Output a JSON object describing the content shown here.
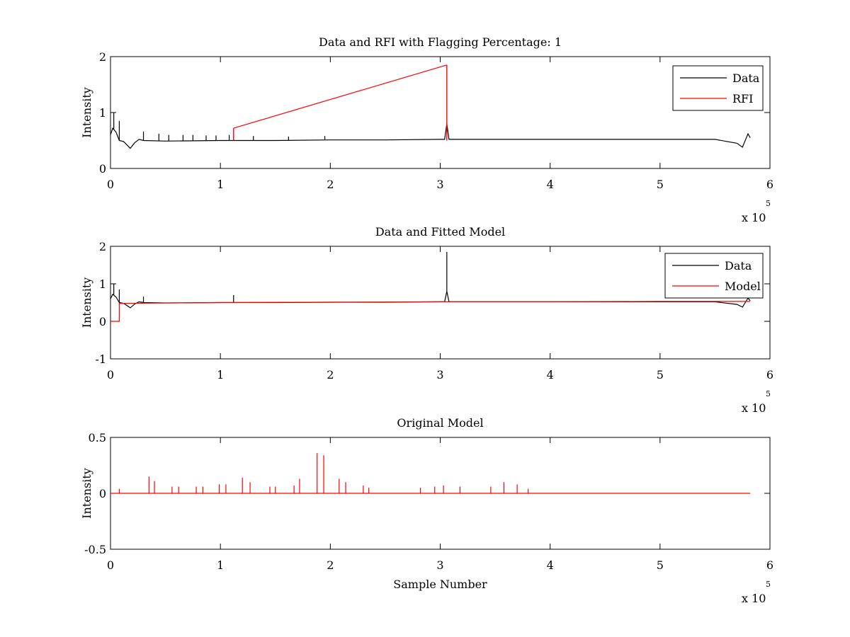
{
  "chart_data": [
    {
      "type": "line",
      "title": "Data and RFI with Flagging Percentage: 1",
      "xlabel": "",
      "ylabel": "Intensity",
      "xlim": [
        0,
        6
      ],
      "ylim": [
        0,
        2
      ],
      "x_ticks": [
        "0",
        "1",
        "2",
        "3",
        "4",
        "5",
        "6"
      ],
      "y_ticks": [
        "0",
        "1",
        "2"
      ],
      "x_multiplier": "x 10",
      "x_exponent": "5",
      "legend": "top-right",
      "series": [
        {
          "name": "Data",
          "color": "#000000",
          "x": [
            0,
            0.02,
            0.05,
            0.08,
            0.12,
            0.15,
            0.18,
            0.22,
            0.26,
            0.3,
            0.5,
            1,
            1.5,
            2,
            2.5,
            3,
            3.04,
            3.06,
            3.08,
            3.5,
            4,
            4.5,
            5,
            5.5,
            5.7,
            5.75,
            5.8,
            5.82
          ],
          "y": [
            0.6,
            0.72,
            0.65,
            0.5,
            0.48,
            0.42,
            0.36,
            0.46,
            0.52,
            0.5,
            0.49,
            0.5,
            0.5,
            0.51,
            0.51,
            0.52,
            0.52,
            0.8,
            0.52,
            0.52,
            0.52,
            0.52,
            0.52,
            0.52,
            0.45,
            0.38,
            0.62,
            0.55
          ],
          "spikes": [
            {
              "x": 0.03,
              "y": 1.0
            },
            {
              "x": 0.08,
              "y": 0.85
            },
            {
              "x": 0.3,
              "y": 0.66
            },
            {
              "x": 0.44,
              "y": 0.62
            },
            {
              "x": 0.53,
              "y": 0.6
            },
            {
              "x": 0.66,
              "y": 0.6
            },
            {
              "x": 0.75,
              "y": 0.6
            },
            {
              "x": 0.87,
              "y": 0.59
            },
            {
              "x": 0.96,
              "y": 0.59
            },
            {
              "x": 1.08,
              "y": 0.6
            },
            {
              "x": 1.3,
              "y": 0.58
            },
            {
              "x": 1.62,
              "y": 0.57
            },
            {
              "x": 1.95,
              "y": 0.58
            },
            {
              "x": 3.06,
              "y": 0.82
            }
          ]
        },
        {
          "name": "RFI",
          "color": "#ff0000",
          "x": [
            1.12,
            3.06
          ],
          "y": [
            0.72,
            1.85
          ]
        }
      ]
    },
    {
      "type": "line",
      "title": "Data and Fitted Model",
      "xlabel": "",
      "ylabel": "Intensity",
      "xlim": [
        0,
        6
      ],
      "ylim": [
        -1,
        2
      ],
      "x_ticks": [
        "0",
        "1",
        "2",
        "3",
        "4",
        "5",
        "6"
      ],
      "y_ticks": [
        "-1",
        "0",
        "1",
        "2"
      ],
      "x_multiplier": "x 10",
      "x_exponent": "5",
      "legend": "top-right",
      "series": [
        {
          "name": "Data",
          "color": "#000000",
          "x": [
            0,
            0.02,
            0.05,
            0.08,
            0.12,
            0.15,
            0.18,
            0.22,
            0.26,
            0.3,
            0.5,
            1,
            1.5,
            2,
            2.5,
            3,
            3.04,
            3.06,
            3.08,
            3.5,
            4,
            4.5,
            5,
            5.5,
            5.7,
            5.75,
            5.8,
            5.82
          ],
          "y": [
            0.6,
            0.72,
            0.65,
            0.5,
            0.48,
            0.42,
            0.36,
            0.46,
            0.52,
            0.5,
            0.49,
            0.5,
            0.5,
            0.51,
            0.51,
            0.52,
            0.52,
            0.8,
            0.52,
            0.52,
            0.52,
            0.52,
            0.52,
            0.52,
            0.45,
            0.38,
            0.62,
            0.55
          ],
          "spikes": [
            {
              "x": 0.03,
              "y": 1.0
            },
            {
              "x": 0.08,
              "y": 0.85
            },
            {
              "x": 0.3,
              "y": 0.66
            },
            {
              "x": 1.12,
              "y": 0.7
            },
            {
              "x": 3.06,
              "y": 1.85
            }
          ]
        },
        {
          "name": "Model",
          "color": "#ff0000",
          "x": [
            0,
            0.08,
            0.08,
            1,
            2,
            3,
            4,
            5,
            5.82
          ],
          "y": [
            0,
            0,
            0.48,
            0.5,
            0.51,
            0.52,
            0.52,
            0.53,
            0.53
          ]
        }
      ]
    },
    {
      "type": "line",
      "title": "Original Model",
      "xlabel": "Sample Number",
      "ylabel": "Intensity",
      "xlim": [
        0,
        6
      ],
      "ylim": [
        -0.5,
        0.5
      ],
      "x_ticks": [
        "0",
        "1",
        "2",
        "3",
        "4",
        "5",
        "6"
      ],
      "y_ticks": [
        "-0.5",
        "0",
        "0.5"
      ],
      "x_multiplier": "x 10",
      "x_exponent": "5",
      "series": [
        {
          "color": "#ff0000",
          "x": [
            0,
            5.82
          ],
          "y": [
            0,
            0
          ],
          "spikes": [
            {
              "x": 0.08,
              "y": 0.04
            },
            {
              "x": 0.35,
              "y": 0.15
            },
            {
              "x": 0.4,
              "y": 0.11
            },
            {
              "x": 0.56,
              "y": 0.06
            },
            {
              "x": 0.62,
              "y": 0.06
            },
            {
              "x": 0.78,
              "y": 0.06
            },
            {
              "x": 0.84,
              "y": 0.06
            },
            {
              "x": 0.99,
              "y": 0.08
            },
            {
              "x": 1.05,
              "y": 0.08
            },
            {
              "x": 1.2,
              "y": 0.14
            },
            {
              "x": 1.27,
              "y": 0.1
            },
            {
              "x": 1.45,
              "y": 0.06
            },
            {
              "x": 1.5,
              "y": 0.06
            },
            {
              "x": 1.67,
              "y": 0.07
            },
            {
              "x": 1.72,
              "y": 0.13
            },
            {
              "x": 1.88,
              "y": 0.36
            },
            {
              "x": 1.94,
              "y": 0.34
            },
            {
              "x": 2.08,
              "y": 0.13
            },
            {
              "x": 2.14,
              "y": 0.1
            },
            {
              "x": 2.3,
              "y": 0.07
            },
            {
              "x": 2.35,
              "y": 0.05
            },
            {
              "x": 2.82,
              "y": 0.05
            },
            {
              "x": 2.95,
              "y": 0.06
            },
            {
              "x": 3.03,
              "y": 0.07
            },
            {
              "x": 3.18,
              "y": 0.06
            },
            {
              "x": 3.46,
              "y": 0.06
            },
            {
              "x": 3.58,
              "y": 0.1
            },
            {
              "x": 3.7,
              "y": 0.08
            },
            {
              "x": 3.8,
              "y": 0.04
            }
          ]
        }
      ]
    }
  ]
}
